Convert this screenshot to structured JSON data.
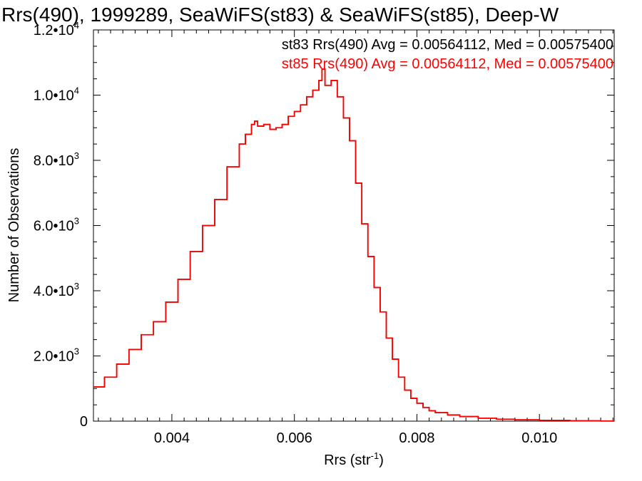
{
  "chart_data": {
    "type": "line",
    "title": "Rrs(490), 1999289, SeaWiFS(st83) & SeaWiFS(st85), Deep-W",
    "xlabel": "Rrs (str",
    "xlabel_sup": "-1",
    "xlabel_end": ")",
    "ylabel": "Number of Observations",
    "xlim": [
      0.00272,
      0.01122
    ],
    "ylim": [
      0,
      12000
    ],
    "x_ticks": [
      {
        "value": 0.004,
        "label": "0.004"
      },
      {
        "value": 0.006,
        "label": "0.006"
      },
      {
        "value": 0.008,
        "label": "0.008"
      },
      {
        "value": 0.01,
        "label": "0.010"
      }
    ],
    "y_ticks": [
      {
        "value": 0,
        "mant": "0",
        "exp": ""
      },
      {
        "value": 2000,
        "mant": "2.0•10",
        "exp": "3"
      },
      {
        "value": 4000,
        "mant": "4.0•10",
        "exp": "3"
      },
      {
        "value": 6000,
        "mant": "6.0•10",
        "exp": "3"
      },
      {
        "value": 8000,
        "mant": "8.0•10",
        "exp": "3"
      },
      {
        "value": 10000,
        "mant": "1.0•10",
        "exp": "4"
      },
      {
        "value": 12000,
        "mant": "1.2•10",
        "exp": "4"
      }
    ],
    "annotations": [
      {
        "text": "st83 Rrs(490) Avg = 0.00564112, Med = 0.00575400",
        "color": "#000000"
      },
      {
        "text": "st85 Rrs(490) Avg = 0.00564112, Med = 0.00575400",
        "color": "#ff0000"
      }
    ],
    "series": [
      {
        "name": "st83",
        "color": "#000000",
        "x": [
          0.0027,
          0.0029,
          0.0031,
          0.0033,
          0.0035,
          0.0037,
          0.0039,
          0.0041,
          0.0043,
          0.0045,
          0.0047,
          0.0049,
          0.0051,
          0.0052,
          0.0053,
          0.00535,
          0.0054,
          0.0055,
          0.0056,
          0.0057,
          0.0058,
          0.0059,
          0.006,
          0.0061,
          0.0062,
          0.0063,
          0.0064,
          0.00645,
          0.0065,
          0.0066,
          0.0067,
          0.0068,
          0.0069,
          0.007,
          0.0071,
          0.0072,
          0.0073,
          0.0074,
          0.0075,
          0.0076,
          0.0077,
          0.0078,
          0.0079,
          0.008,
          0.0081,
          0.0082,
          0.0083,
          0.0085,
          0.0087,
          0.009,
          0.0093,
          0.0096,
          0.01,
          0.0105,
          0.011,
          0.0112
        ],
        "values": [
          1050,
          1350,
          1750,
          2200,
          2650,
          3050,
          3650,
          4350,
          5200,
          6000,
          6800,
          7800,
          8500,
          8800,
          9100,
          9200,
          9050,
          9100,
          8950,
          9000,
          9100,
          9350,
          9500,
          9700,
          9950,
          10150,
          10450,
          10800,
          10300,
          10450,
          9950,
          9300,
          8600,
          7300,
          6050,
          5050,
          4100,
          3350,
          2550,
          1900,
          1350,
          950,
          700,
          550,
          420,
          320,
          260,
          190,
          140,
          90,
          60,
          40,
          25,
          12,
          5,
          3
        ]
      },
      {
        "name": "st85",
        "color": "#ff0000",
        "x": [
          0.0027,
          0.0029,
          0.0031,
          0.0033,
          0.0035,
          0.0037,
          0.0039,
          0.0041,
          0.0043,
          0.0045,
          0.0047,
          0.0049,
          0.0051,
          0.0052,
          0.0053,
          0.00535,
          0.0054,
          0.0055,
          0.0056,
          0.0057,
          0.0058,
          0.0059,
          0.006,
          0.0061,
          0.0062,
          0.0063,
          0.0064,
          0.00645,
          0.0065,
          0.0066,
          0.0067,
          0.0068,
          0.0069,
          0.007,
          0.0071,
          0.0072,
          0.0073,
          0.0074,
          0.0075,
          0.0076,
          0.0077,
          0.0078,
          0.0079,
          0.008,
          0.0081,
          0.0082,
          0.0083,
          0.0085,
          0.0087,
          0.009,
          0.0093,
          0.0096,
          0.01,
          0.0105,
          0.011,
          0.0112
        ],
        "values": [
          1050,
          1350,
          1750,
          2200,
          2650,
          3050,
          3650,
          4350,
          5200,
          6000,
          6800,
          7800,
          8500,
          8800,
          9100,
          9200,
          9050,
          9100,
          8950,
          9000,
          9100,
          9350,
          9500,
          9700,
          9950,
          10150,
          10450,
          10800,
          10300,
          10450,
          9950,
          9300,
          8600,
          7300,
          6050,
          5050,
          4100,
          3350,
          2550,
          1900,
          1350,
          950,
          700,
          550,
          420,
          320,
          260,
          190,
          140,
          90,
          60,
          40,
          25,
          12,
          5,
          3
        ]
      }
    ]
  }
}
